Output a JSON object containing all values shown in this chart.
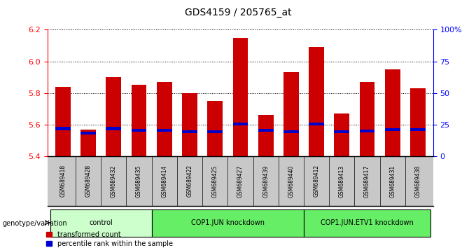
{
  "title": "GDS4159 / 205765_at",
  "samples": [
    "GSM689418",
    "GSM689428",
    "GSM689432",
    "GSM689435",
    "GSM689414",
    "GSM689422",
    "GSM689425",
    "GSM689427",
    "GSM689439",
    "GSM689440",
    "GSM689412",
    "GSM689413",
    "GSM689417",
    "GSM689431",
    "GSM689438"
  ],
  "transformed_count": [
    5.84,
    5.57,
    5.9,
    5.85,
    5.87,
    5.8,
    5.75,
    6.15,
    5.66,
    5.93,
    6.09,
    5.67,
    5.87,
    5.95,
    5.83
  ],
  "percentile_rank": [
    5.575,
    5.545,
    5.575,
    5.565,
    5.565,
    5.555,
    5.555,
    5.605,
    5.565,
    5.555,
    5.605,
    5.555,
    5.56,
    5.57,
    5.57
  ],
  "ylim_left": [
    5.4,
    6.2
  ],
  "yticks_left": [
    5.4,
    5.6,
    5.8,
    6.0,
    6.2
  ],
  "ylim_right": [
    0,
    100
  ],
  "yticks_right": [
    0,
    25,
    50,
    75,
    100
  ],
  "ytick_labels_right": [
    "0",
    "25",
    "50",
    "75",
    "100%"
  ],
  "groups": [
    {
      "label": "control",
      "start": 0,
      "end": 3,
      "color": "#ccffcc"
    },
    {
      "label": "COP1.JUN knockdown",
      "start": 4,
      "end": 9,
      "color": "#66ee66"
    },
    {
      "label": "COP1.JUN.ETV1 knockdown",
      "start": 10,
      "end": 14,
      "color": "#66ee66"
    }
  ],
  "bar_color": "#cc0000",
  "percentile_color": "#0000cc",
  "bar_width": 0.6,
  "grid_color": "#000000",
  "background_color": "#ffffff",
  "tick_area_color": "#c8c8c8",
  "genotype_label": "genotype/variation",
  "legend_items": [
    {
      "label": "transformed count",
      "color": "#cc0000"
    },
    {
      "label": "percentile rank within the sample",
      "color": "#0000cc"
    }
  ]
}
